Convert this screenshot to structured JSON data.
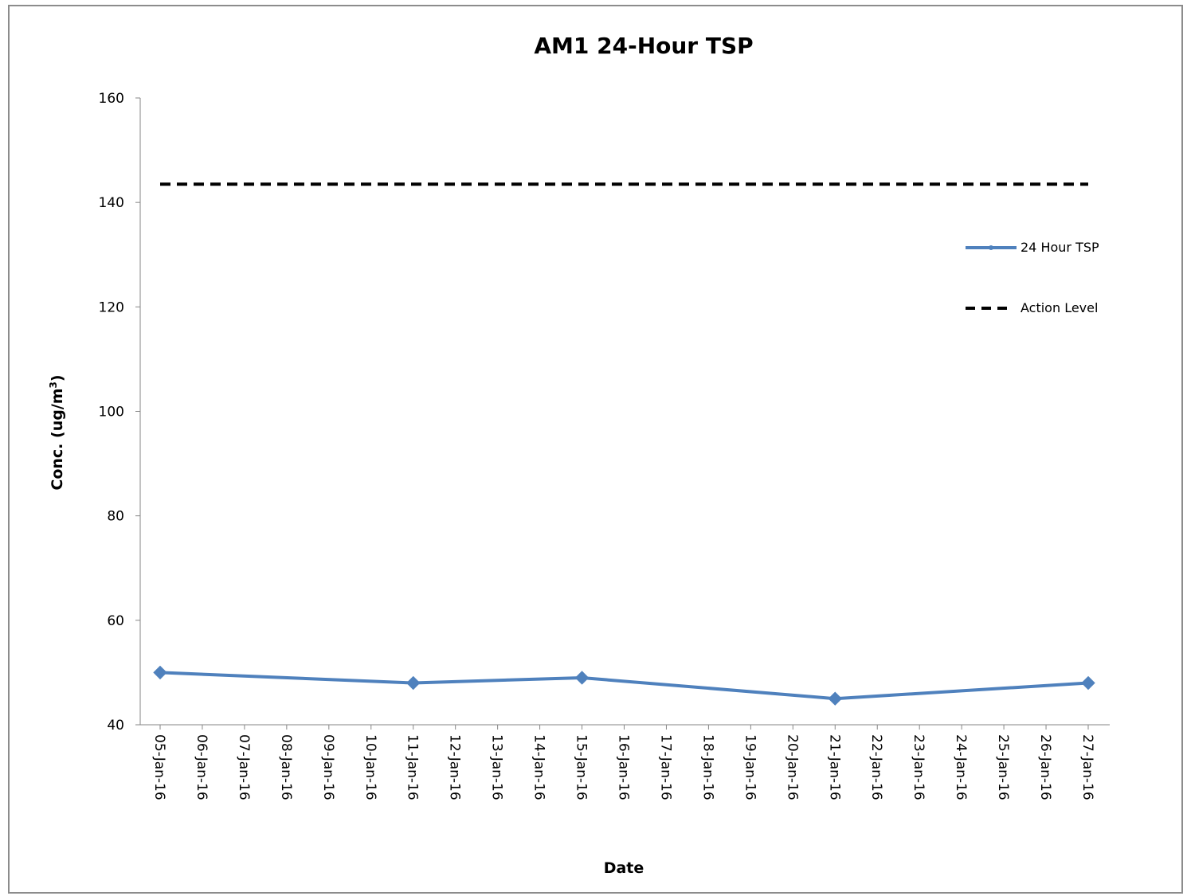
{
  "chart_data": {
    "type": "line",
    "title": "AM1 24-Hour TSP",
    "xlabel": "Date",
    "ylabel": "Conc. (ug/m3)",
    "ylabel_main": "Conc. (ug/m",
    "ylabel_sup": "3",
    "ylabel_end": ")",
    "ylim": [
      40,
      160
    ],
    "yticks": [
      40,
      60,
      80,
      100,
      120,
      140,
      160
    ],
    "categories": [
      "05-Jan-16",
      "06-Jan-16",
      "07-Jan-16",
      "08-Jan-16",
      "09-Jan-16",
      "10-Jan-16",
      "11-Jan-16",
      "12-Jan-16",
      "13-Jan-16",
      "14-Jan-16",
      "15-Jan-16",
      "16-Jan-16",
      "17-Jan-16",
      "18-Jan-16",
      "19-Jan-16",
      "20-Jan-16",
      "21-Jan-16",
      "22-Jan-16",
      "23-Jan-16",
      "24-Jan-16",
      "25-Jan-16",
      "26-Jan-16",
      "27-Jan-16"
    ],
    "grid": false,
    "legend_position": "right",
    "series": [
      {
        "name": "24 Hour TSP",
        "color": "#4f81bd",
        "style": "solid-markers",
        "points": [
          {
            "x": "05-Jan-16",
            "y": 50
          },
          {
            "x": "11-Jan-16",
            "y": 48
          },
          {
            "x": "15-Jan-16",
            "y": 49
          },
          {
            "x": "21-Jan-16",
            "y": 45
          },
          {
            "x": "27-Jan-16",
            "y": 48
          }
        ]
      },
      {
        "name": "Action Level",
        "color": "#000000",
        "style": "dashed",
        "points": [
          {
            "x": "05-Jan-16",
            "y": 143.5
          },
          {
            "x": "27-Jan-16",
            "y": 143.5
          }
        ]
      }
    ]
  }
}
